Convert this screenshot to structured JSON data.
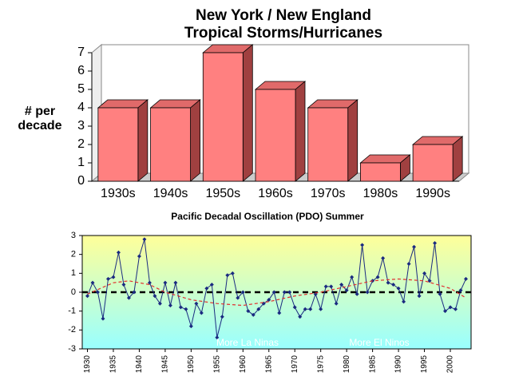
{
  "chart_data": [
    {
      "type": "bar3d",
      "title": [
        "New York / New England",
        "Tropical Storms/Hurricanes"
      ],
      "ylabel": [
        "# per",
        "decade"
      ],
      "categories": [
        "1930s",
        "1940s",
        "1950s",
        "1960s",
        "1970s",
        "1980s",
        "1990s"
      ],
      "values": [
        4,
        4,
        7,
        5,
        4,
        1,
        2
      ],
      "color": "#ff8080",
      "ylim": [
        0,
        7
      ],
      "yticks": [
        0,
        1,
        2,
        3,
        4,
        5,
        6,
        7
      ]
    },
    {
      "type": "line",
      "title": "Pacific Decadal Oscillation (PDO) Summer",
      "annotations": [
        "More La Ninas",
        "More El Ninos"
      ],
      "x": [
        1930,
        1931,
        1932,
        1933,
        1934,
        1935,
        1936,
        1937,
        1938,
        1939,
        1940,
        1941,
        1942,
        1943,
        1944,
        1945,
        1946,
        1947,
        1948,
        1949,
        1950,
        1951,
        1952,
        1953,
        1954,
        1955,
        1956,
        1957,
        1958,
        1959,
        1960,
        1961,
        1962,
        1963,
        1964,
        1965,
        1966,
        1967,
        1968,
        1969,
        1970,
        1971,
        1972,
        1973,
        1974,
        1975,
        1976,
        1977,
        1978,
        1979,
        1980,
        1981,
        1982,
        1983,
        1984,
        1985,
        1986,
        1987,
        1988,
        1989,
        1990,
        1991,
        1992,
        1993,
        1994,
        1995,
        1996,
        1997,
        1998,
        1999,
        2000,
        2001,
        2002,
        2003
      ],
      "series": [
        {
          "color": "#1a2a80",
          "values": [
            -0.2,
            0.5,
            0.0,
            -1.4,
            0.7,
            0.8,
            2.1,
            0.4,
            -0.3,
            0.0,
            1.9,
            2.8,
            0.5,
            -0.2,
            -0.6,
            0.5,
            -0.7,
            0.5,
            -0.8,
            -0.9,
            -1.8,
            -0.6,
            -1.1,
            0.2,
            0.4,
            -2.4,
            -1.3,
            0.9,
            1.0,
            -0.3,
            0.0,
            -1.0,
            -1.2,
            -0.9,
            -0.6,
            -0.4,
            0.0,
            -1.1,
            0.0,
            0.0,
            -0.8,
            -1.3,
            -0.9,
            -0.9,
            -0.1,
            -0.9,
            0.3,
            0.3,
            -0.6,
            0.4,
            0.1,
            0.8,
            -0.1,
            2.5,
            0.0,
            0.6,
            0.8,
            1.8,
            0.5,
            0.4,
            0.2,
            -0.5,
            1.5,
            2.4,
            -0.2,
            1.0,
            0.6,
            2.6,
            -0.1,
            -1.0,
            -0.8,
            -0.9,
            0.1,
            0.7
          ]
        },
        {
          "color": "#e03030",
          "dashed": true,
          "x": [
            1930,
            1935,
            1938,
            1942,
            1945,
            1950,
            1955,
            1960,
            1965,
            1970,
            1975,
            1980,
            1985,
            1990,
            1995,
            2000,
            2003
          ],
          "values": [
            -0.1,
            0.5,
            0.6,
            0.4,
            0.0,
            -0.4,
            -0.6,
            -0.7,
            -0.5,
            -0.2,
            0.0,
            0.3,
            0.6,
            0.7,
            0.6,
            0.2,
            -0.3
          ]
        }
      ],
      "xlim": [
        1929,
        2004
      ],
      "xticks": [
        1930,
        1935,
        1940,
        1945,
        1950,
        1955,
        1960,
        1965,
        1970,
        1975,
        1980,
        1985,
        1990,
        1995,
        2000
      ],
      "ylim": [
        -3,
        3
      ],
      "yticks": [
        -3,
        -2,
        -1,
        0,
        1,
        2,
        3
      ]
    }
  ]
}
